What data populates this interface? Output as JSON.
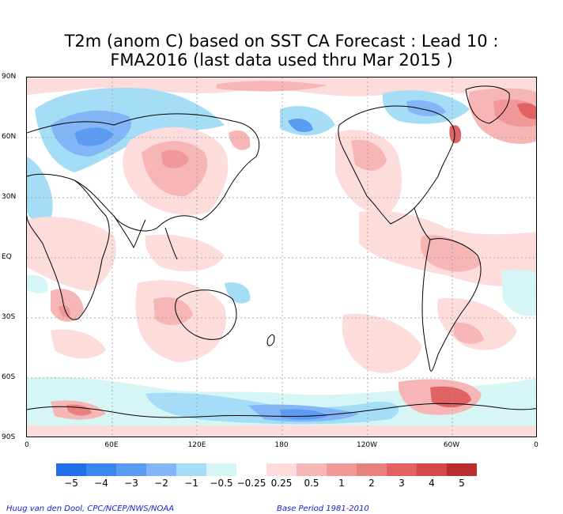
{
  "title": {
    "line1": "T2m (anom C) based on SST CA Forecast : Lead 10 :",
    "line2": "FMA2016 (last data used thru Mar 2015 )"
  },
  "lat_labels": [
    "90N",
    "60N",
    "30N",
    "EQ",
    "30S",
    "60S",
    "90S"
  ],
  "lon_labels": [
    "0",
    "60E",
    "120E",
    "180",
    "120W",
    "60W",
    "0"
  ],
  "colorbar": {
    "colors": [
      "#1f6fe8",
      "#3a86ee",
      "#5b9cf2",
      "#82b6f6",
      "#a6ddf6",
      "#d6f6f6",
      "#ffffff",
      "#fddcdc",
      "#f7b6b6",
      "#f09898",
      "#e88080",
      "#e06262",
      "#d44848",
      "#b82e2e"
    ],
    "labels": [
      "−5",
      "−4",
      "−3",
      "−2",
      "−1",
      "−0.5",
      "−0.25",
      "0.25",
      "0.5",
      "1",
      "2",
      "3",
      "4",
      "5"
    ]
  },
  "credits": {
    "left": "Huug van den Dool, CPC/NCEP/NWS/NOAA",
    "right": "Base Period 1981-2010"
  }
}
